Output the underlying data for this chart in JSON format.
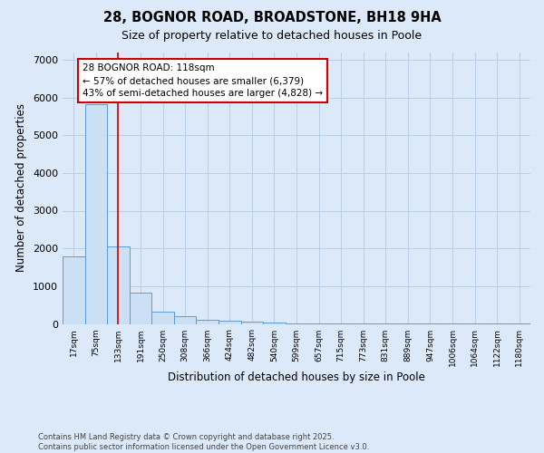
{
  "title1": "28, BOGNOR ROAD, BROADSTONE, BH18 9HA",
  "title2": "Size of property relative to detached houses in Poole",
  "xlabel": "Distribution of detached houses by size in Poole",
  "ylabel": "Number of detached properties",
  "categories": [
    "17sqm",
    "75sqm",
    "133sqm",
    "191sqm",
    "250sqm",
    "308sqm",
    "366sqm",
    "424sqm",
    "482sqm",
    "540sqm",
    "599sqm",
    "657sqm",
    "715sqm",
    "773sqm",
    "831sqm",
    "889sqm",
    "947sqm",
    "1006sqm",
    "1064sqm",
    "1122sqm",
    "1180sqm"
  ],
  "values": [
    1800,
    5820,
    2060,
    820,
    330,
    195,
    115,
    78,
    55,
    32,
    22,
    18,
    12,
    6,
    4,
    2,
    1,
    1,
    1,
    1,
    1
  ],
  "bar_color": "#cce0f5",
  "bar_edge_color": "#5b9bd5",
  "grid_color": "#b8cfe8",
  "vline_color": "#cc0000",
  "vline_x_index": 2,
  "annotation_line1": "28 BOGNOR ROAD: 118sqm",
  "annotation_line2": "← 57% of detached houses are smaller (6,379)",
  "annotation_line3": "43% of semi-detached houses are larger (4,828) →",
  "annotation_box_color": "#ffffff",
  "annotation_box_edge": "#cc0000",
  "ylim": [
    0,
    7200
  ],
  "yticks": [
    0,
    1000,
    2000,
    3000,
    4000,
    5000,
    6000,
    7000
  ],
  "footnote": "Contains HM Land Registry data © Crown copyright and database right 2025.\nContains public sector information licensed under the Open Government Licence v3.0.",
  "bg_color": "#dce9f8",
  "plot_bg_color": "#dce9f8"
}
